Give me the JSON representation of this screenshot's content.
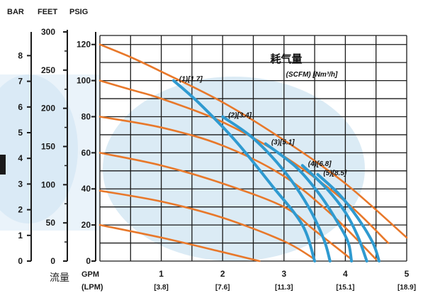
{
  "chart_data": {
    "type": "line",
    "x_axis": {
      "unit_primary": "GPM",
      "unit_secondary": "(LPM)",
      "range": [
        0,
        5
      ],
      "ticks": [
        "1",
        "2",
        "3",
        "4",
        "5"
      ],
      "ticks_secondary": [
        "[3.8]",
        "[7.6]",
        "[11.3]",
        "[15.1]",
        "[18.9]"
      ],
      "label": "流量"
    },
    "y_axis": {
      "unit": "PSIG",
      "range": [
        0,
        125
      ],
      "ticks": [
        "0",
        "20",
        "40",
        "60",
        "80",
        "100",
        "120"
      ]
    },
    "y_axis_feet": {
      "unit": "FEET",
      "ticks": [
        "0",
        "50",
        "100",
        "150",
        "200",
        "250",
        "300"
      ]
    },
    "y_axis_bar": {
      "unit": "BAR",
      "ticks": [
        "0",
        "1",
        "2",
        "3",
        "4",
        "5",
        "6",
        "7",
        "8"
      ]
    },
    "grid": true,
    "legend": {
      "title": "耗气量",
      "subtitle": "(SCFM) [Nm³/h]"
    },
    "head_curves": [
      {
        "points": [
          [
            0,
            120
          ],
          [
            0.5,
            113
          ],
          [
            1,
            105
          ],
          [
            2,
            88
          ],
          [
            3,
            67
          ],
          [
            4,
            43
          ],
          [
            5,
            13
          ]
        ]
      },
      {
        "points": [
          [
            0,
            100
          ],
          [
            0.5,
            95
          ],
          [
            1,
            90
          ],
          [
            2,
            77
          ],
          [
            3,
            58
          ],
          [
            4,
            33
          ],
          [
            4.7,
            10
          ]
        ]
      },
      {
        "points": [
          [
            0,
            80
          ],
          [
            1,
            74
          ],
          [
            2,
            64
          ],
          [
            3,
            47
          ],
          [
            3.8,
            25
          ],
          [
            4.5,
            1
          ]
        ]
      },
      {
        "points": [
          [
            0,
            60
          ],
          [
            1,
            53
          ],
          [
            2,
            43
          ],
          [
            3,
            30
          ],
          [
            3.5,
            17
          ],
          [
            4.1,
            1
          ]
        ]
      },
      {
        "points": [
          [
            0,
            39
          ],
          [
            1,
            33
          ],
          [
            2,
            24
          ],
          [
            3,
            11
          ],
          [
            3.5,
            1
          ]
        ]
      },
      {
        "points": [
          [
            0,
            20
          ],
          [
            1,
            13
          ],
          [
            2,
            5
          ],
          [
            2.6,
            0
          ]
        ]
      }
    ],
    "air_consumption_curves": [
      {
        "label": "(1)",
        "value": "[1.7]",
        "points": [
          [
            1.2,
            100
          ],
          [
            1.6,
            88
          ],
          [
            2.2,
            67
          ],
          [
            2.8,
            42
          ],
          [
            3.3,
            20
          ],
          [
            3.5,
            0
          ]
        ]
      },
      {
        "label": "(2)",
        "value": "[3.4]",
        "points": [
          [
            2.0,
            80
          ],
          [
            2.5,
            68
          ],
          [
            3.0,
            50
          ],
          [
            3.4,
            30
          ],
          [
            3.65,
            12
          ],
          [
            3.75,
            0
          ]
        ]
      },
      {
        "label": "(3)",
        "value": "[5.1]",
        "points": [
          [
            2.7,
            65
          ],
          [
            3.2,
            52
          ],
          [
            3.6,
            36
          ],
          [
            3.9,
            20
          ],
          [
            4.05,
            10
          ],
          [
            4.1,
            0
          ]
        ]
      },
      {
        "label": "(4)",
        "value": "[6.8]",
        "points": [
          [
            3.3,
            53
          ],
          [
            3.7,
            40
          ],
          [
            4.0,
            27
          ],
          [
            4.2,
            14
          ],
          [
            4.35,
            0
          ]
        ]
      },
      {
        "label": "(5)",
        "value": "[8.5]",
        "points": [
          [
            3.55,
            48
          ],
          [
            3.9,
            37
          ],
          [
            4.2,
            24
          ],
          [
            4.45,
            10
          ],
          [
            4.55,
            0
          ]
        ]
      }
    ],
    "colors": {
      "head_curve": "#e8782a",
      "air_curve": "#2f9ad0",
      "grid": "#1a1a1a",
      "tint": "#cfe4f2"
    }
  }
}
